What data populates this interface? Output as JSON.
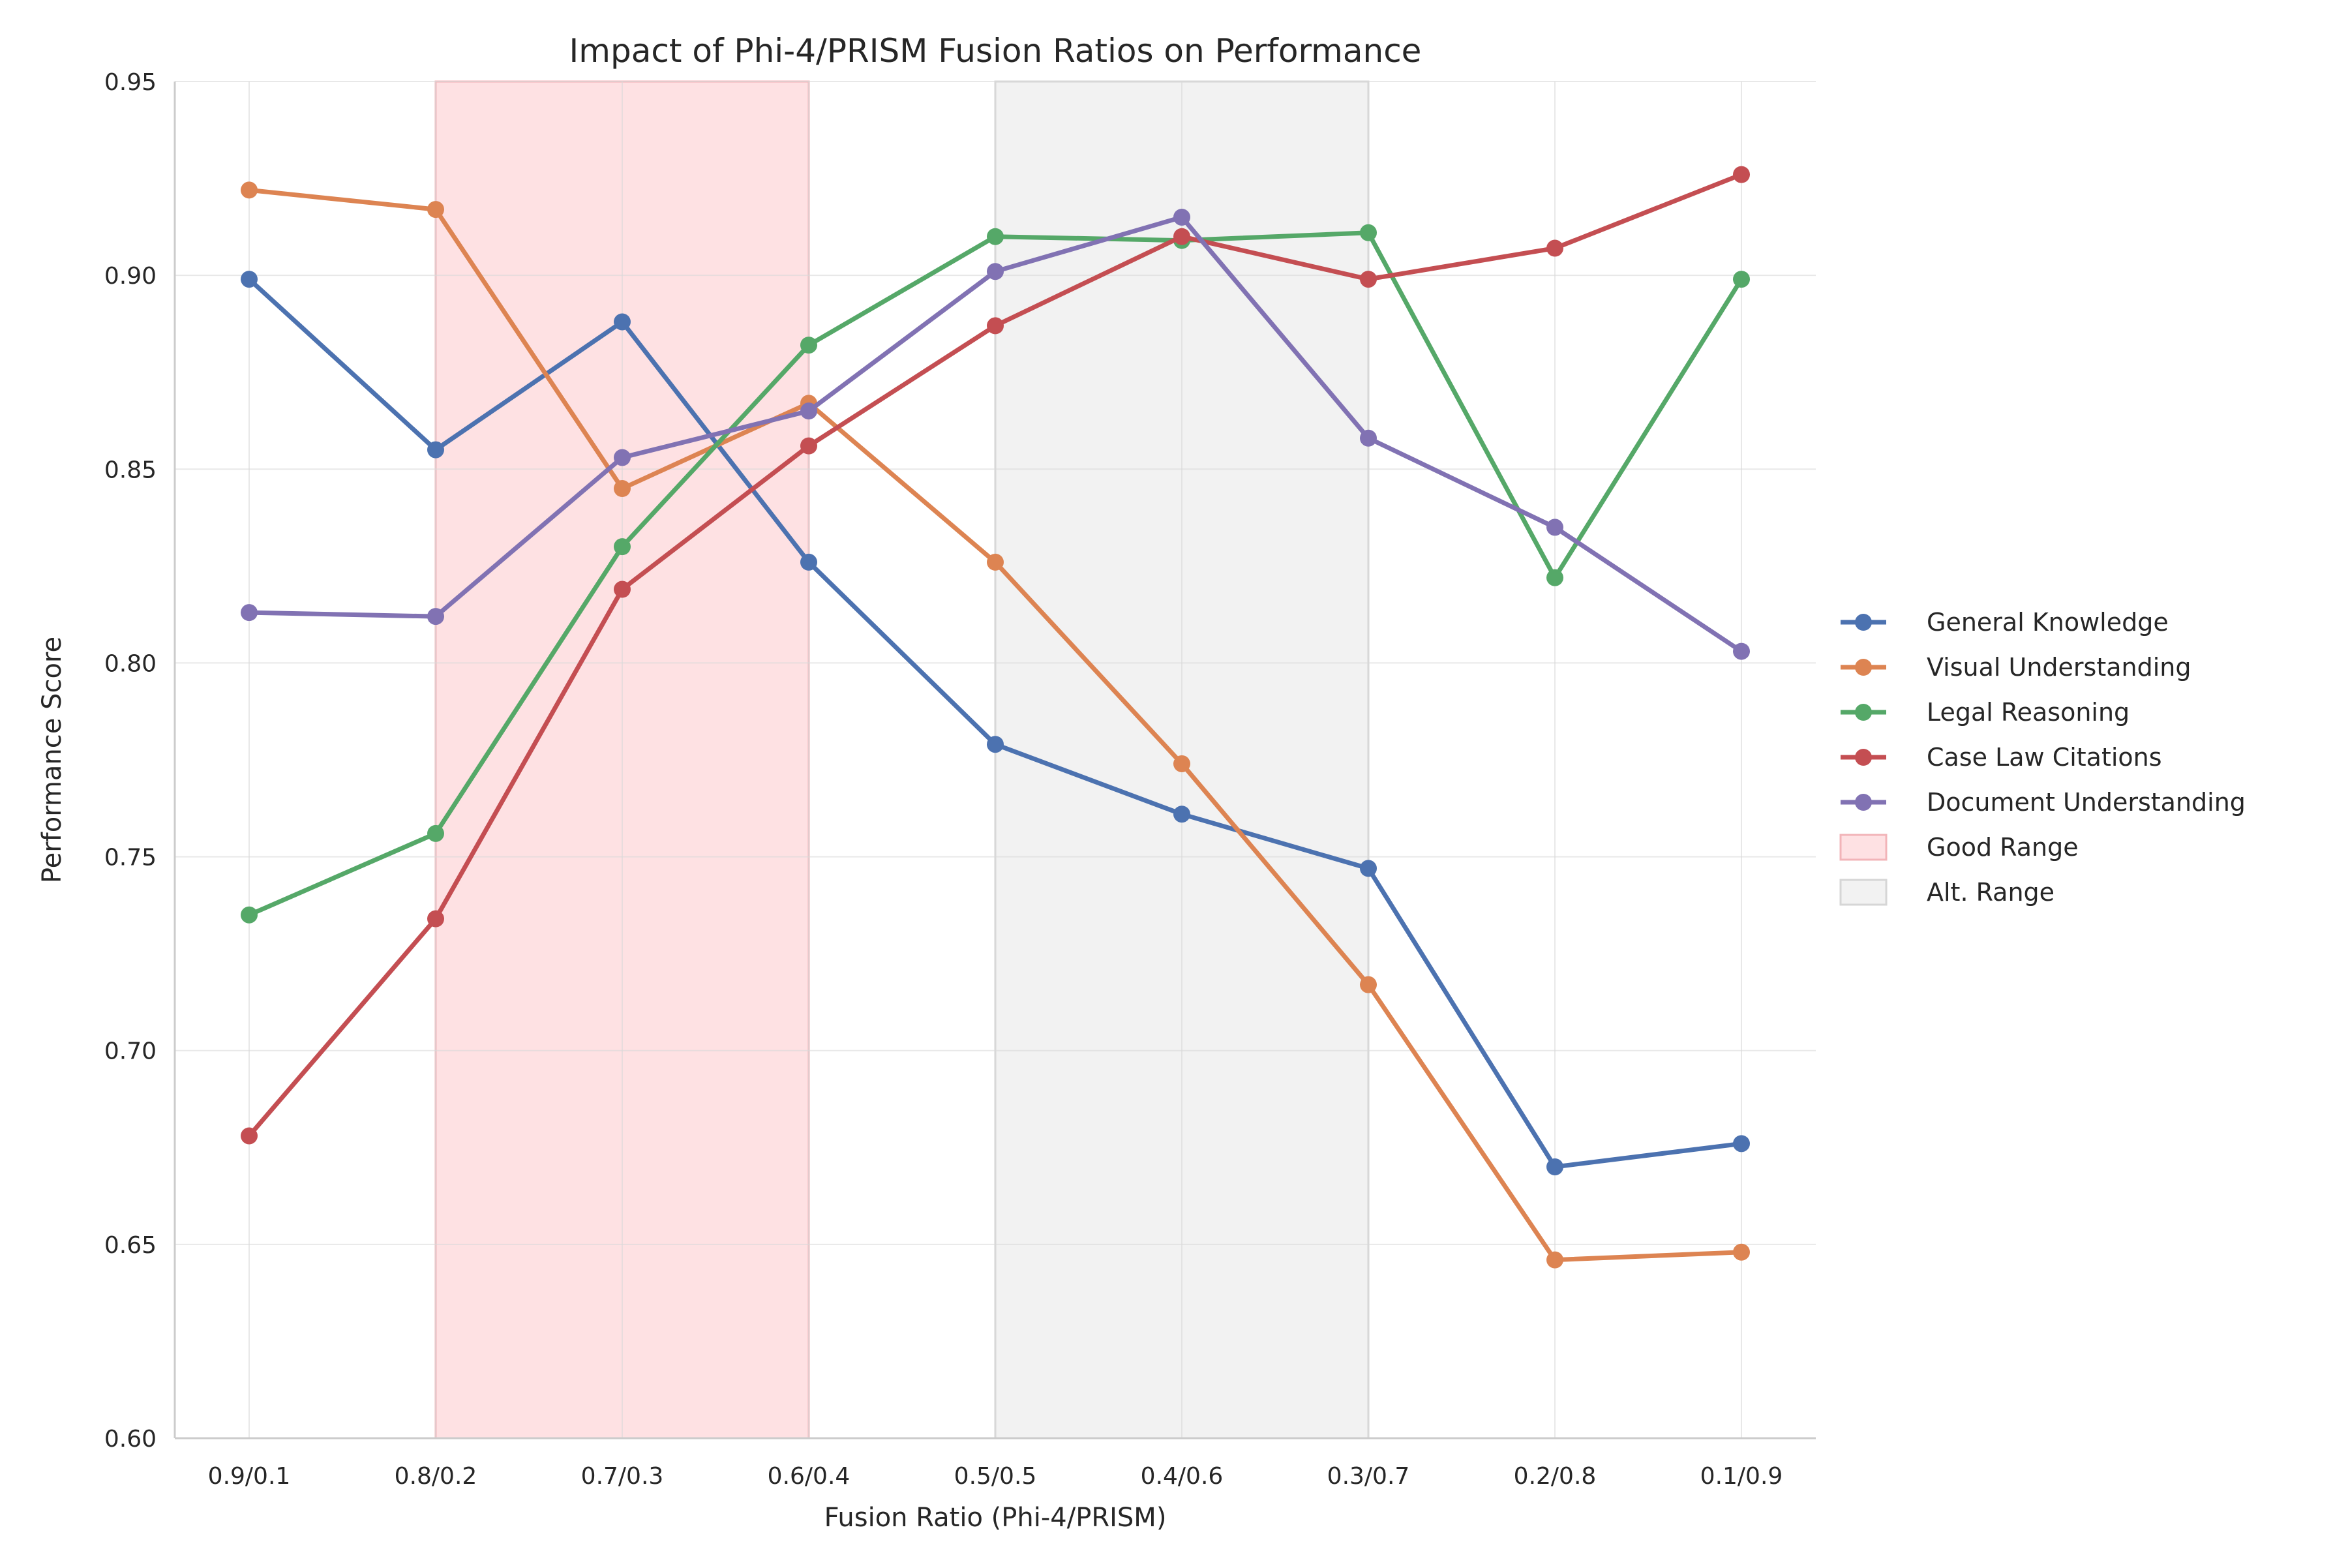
{
  "chart_data": {
    "type": "line",
    "title": "Impact of Phi-4/PRISM Fusion Ratios on Performance",
    "xlabel": "Fusion Ratio (Phi-4/PRISM)",
    "ylabel": "Performance Score",
    "categories": [
      "0.9/0.1",
      "0.8/0.2",
      "0.7/0.3",
      "0.6/0.4",
      "0.5/0.5",
      "0.4/0.6",
      "0.3/0.7",
      "0.2/0.8",
      "0.1/0.9"
    ],
    "ylim": [
      0.6,
      0.95
    ],
    "yticks": [
      "0.60",
      "0.65",
      "0.70",
      "0.75",
      "0.80",
      "0.85",
      "0.90",
      "0.95"
    ],
    "grid": true,
    "legend_position": "right",
    "series": [
      {
        "name": "General Knowledge",
        "color": "#4c72b0",
        "values": [
          0.899,
          0.855,
          0.888,
          0.826,
          0.779,
          0.761,
          0.747,
          0.67,
          0.676
        ]
      },
      {
        "name": "Visual Understanding",
        "color": "#dd8452",
        "values": [
          0.922,
          0.917,
          0.845,
          0.867,
          0.826,
          0.774,
          0.717,
          0.646,
          0.648
        ]
      },
      {
        "name": "Legal Reasoning",
        "color": "#55a868",
        "values": [
          0.735,
          0.756,
          0.83,
          0.882,
          0.91,
          0.909,
          0.911,
          0.822,
          0.899
        ]
      },
      {
        "name": "Case Law Citations",
        "color": "#c44e52",
        "values": [
          0.678,
          0.734,
          0.819,
          0.856,
          0.887,
          0.91,
          0.899,
          0.907,
          0.926
        ]
      },
      {
        "name": "Document Understanding",
        "color": "#8172b3",
        "values": [
          0.813,
          0.812,
          0.853,
          0.865,
          0.901,
          0.915,
          0.858,
          0.835,
          0.803
        ]
      }
    ],
    "ranges": [
      {
        "name": "Good Range",
        "from_category": "0.8/0.2",
        "to_category": "0.6/0.4",
        "fill": "#fee1e3",
        "stroke": "#f2b4b8"
      },
      {
        "name": "Alt. Range",
        "from_category": "0.5/0.5",
        "to_category": "0.3/0.7",
        "fill": "#f2f2f2",
        "stroke": "#d6d6d6"
      }
    ]
  }
}
